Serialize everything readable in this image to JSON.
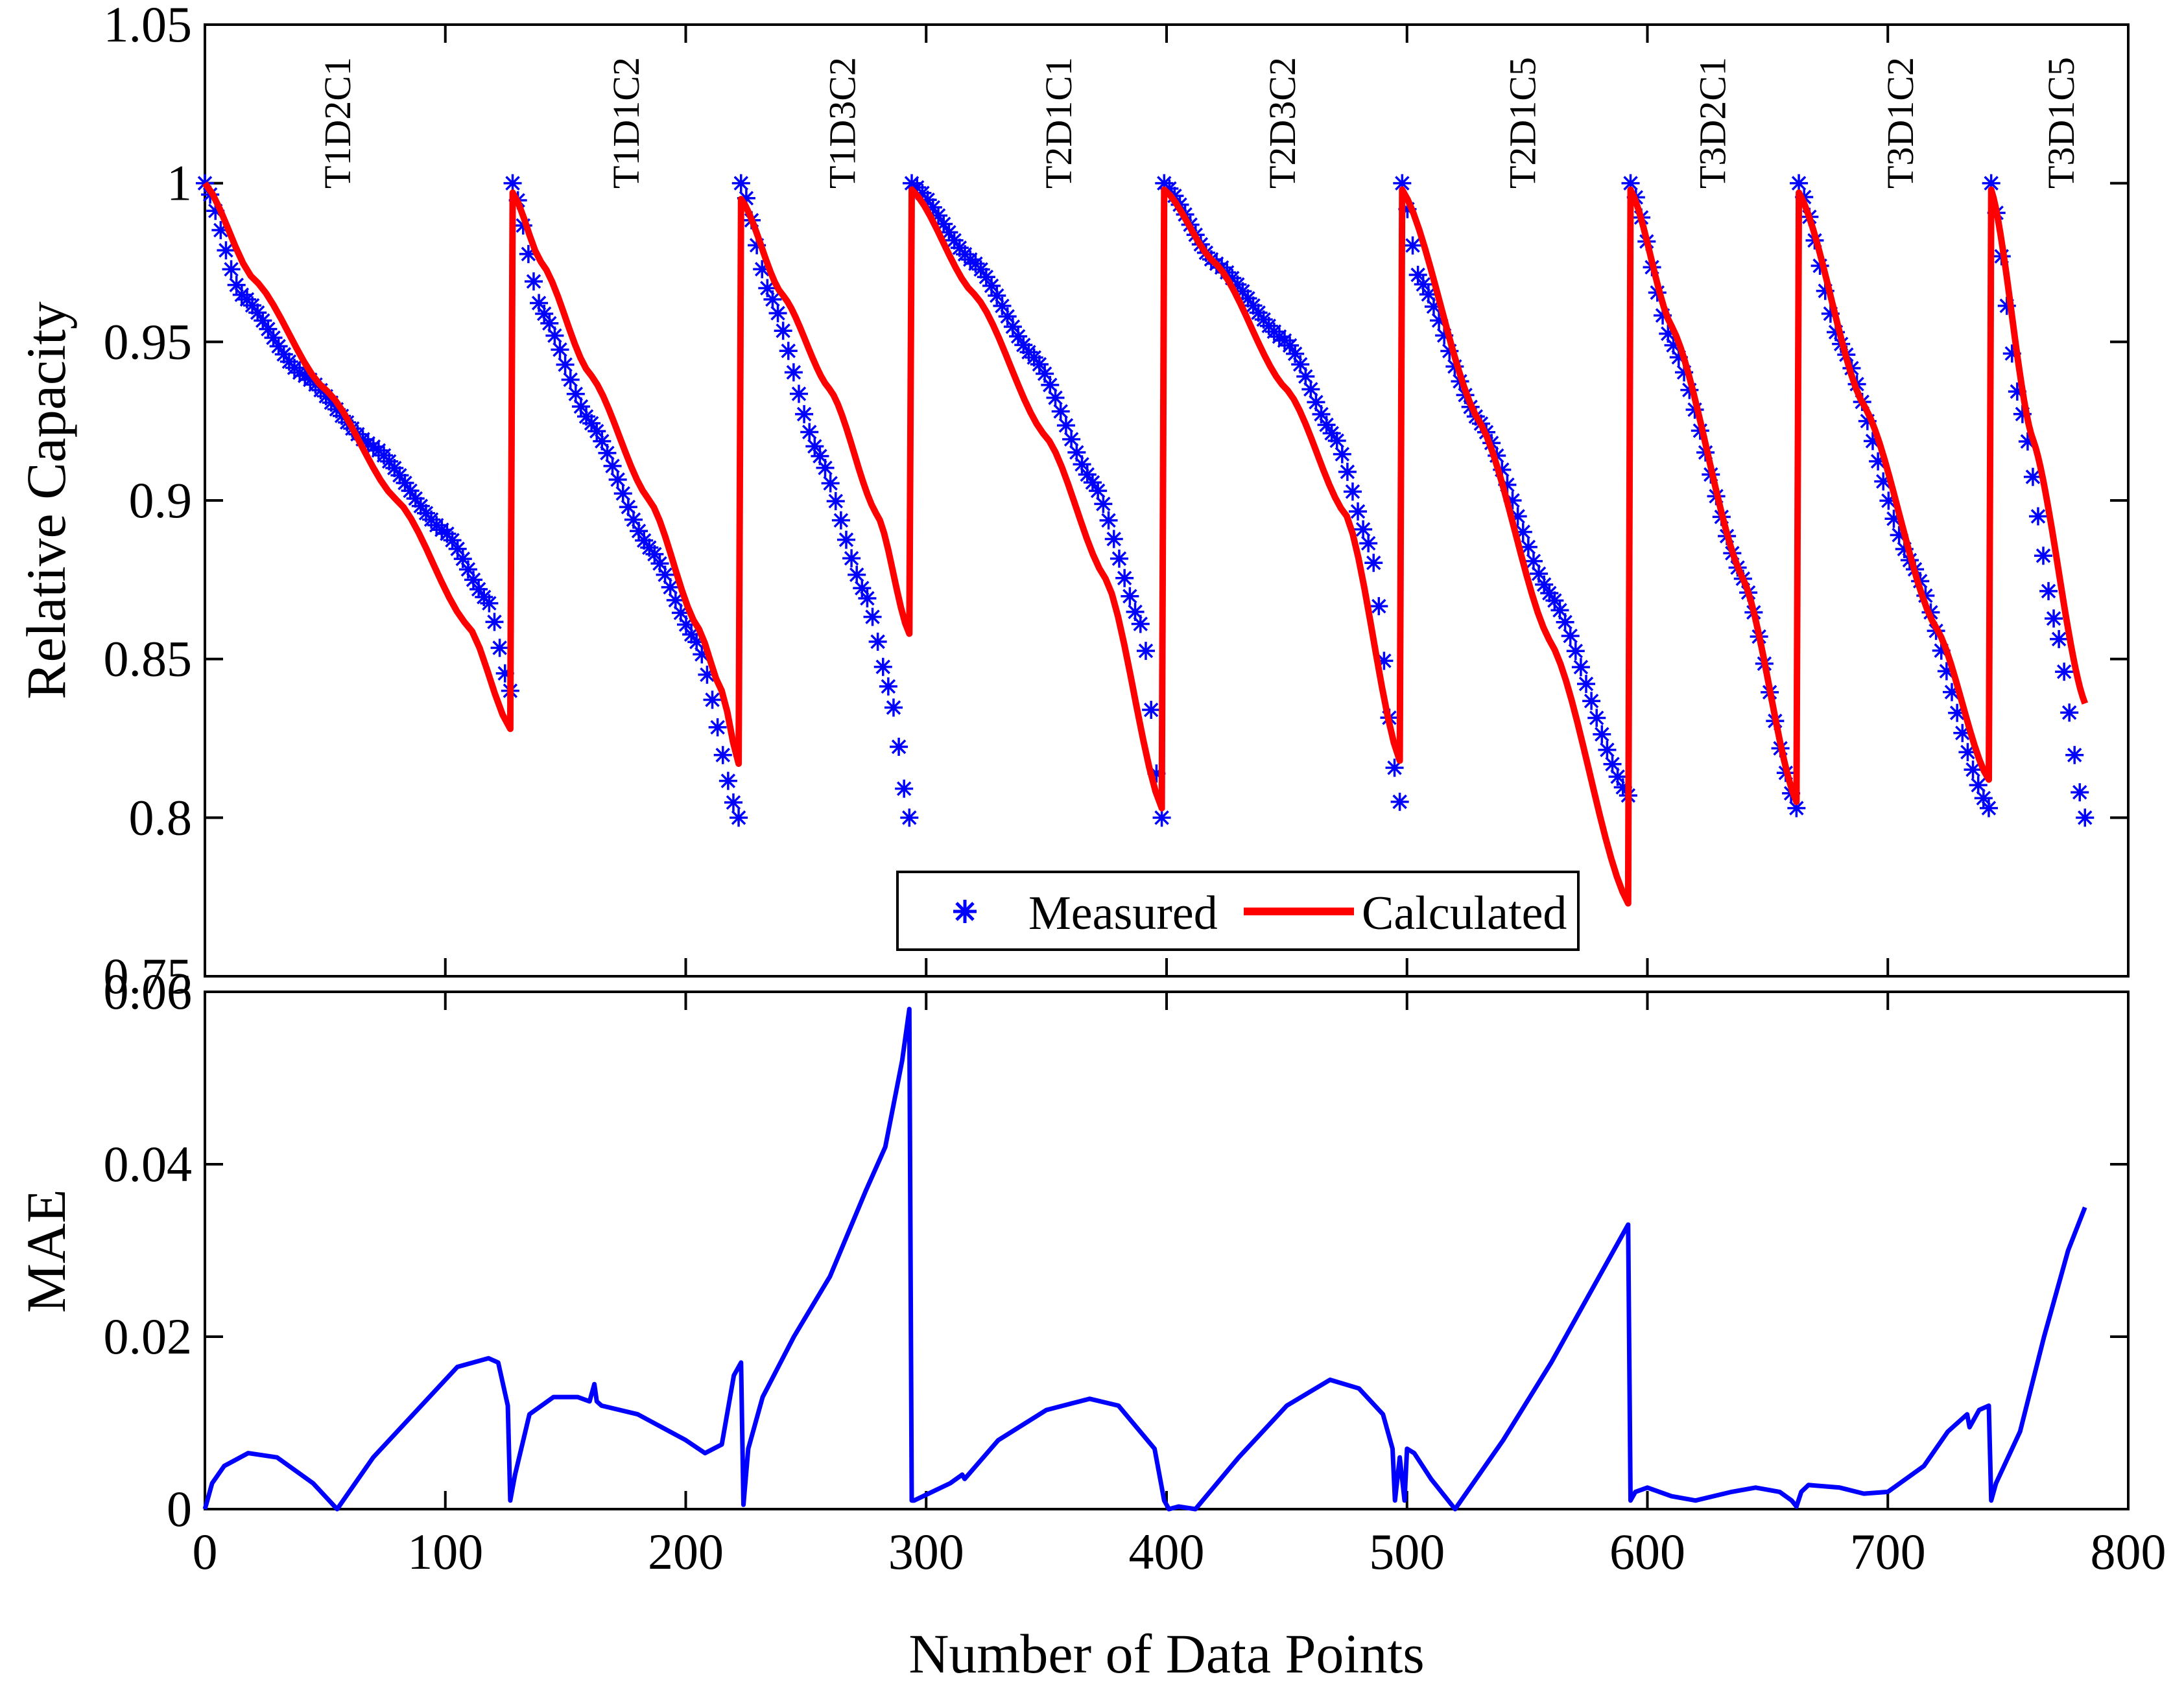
{
  "chart_data": [
    {
      "type": "line",
      "panel": "top",
      "title": "",
      "xlabel": "",
      "ylabel": "Relative Capacity",
      "xlim": [
        0,
        800
      ],
      "ylim": [
        0.75,
        1.05
      ],
      "xticks": [
        0,
        100,
        200,
        300,
        400,
        500,
        600,
        700,
        800
      ],
      "xtick_labels": [
        "",
        "",
        "",
        "",
        "",
        "",
        "",
        "",
        ""
      ],
      "yticks": [
        0.75,
        0.8,
        0.85,
        0.9,
        0.95,
        1,
        1.05
      ],
      "ytick_labels": [
        "0.75",
        "0.8",
        "0.85",
        "0.9",
        "0.95",
        "1",
        "1.05"
      ],
      "segment_labels": [
        "T1D2C1",
        "T1D1C2",
        "T1D3C2",
        "T2D1C1",
        "T2D3C2",
        "T2D1C5",
        "T3D2C1",
        "T3D1C2",
        "T3D1C5"
      ],
      "segment_label_x": [
        55,
        175,
        265,
        355,
        448,
        548,
        627,
        705,
        772
      ],
      "legend": {
        "location": "bottom-center",
        "entries": [
          "Measured",
          "Calculated"
        ]
      },
      "segments": [
        {
          "x0": 0,
          "x1": 127,
          "measured": [
            [
              0,
              1.0
            ],
            [
              15,
              0.965
            ],
            [
              40,
              0.94
            ],
            [
              70,
              0.917
            ],
            [
              100,
              0.89
            ],
            [
              118,
              0.868
            ],
            [
              127,
              0.84
            ]
          ],
          "calculated": [
            [
              0,
              1.0
            ],
            [
              20,
              0.97
            ],
            [
              50,
              0.935
            ],
            [
              80,
              0.9
            ],
            [
              110,
              0.86
            ],
            [
              127,
              0.828
            ]
          ]
        },
        {
          "x0": 128,
          "x1": 222,
          "measured": [
            [
              128,
              1.0
            ],
            [
              140,
              0.96
            ],
            [
              160,
              0.925
            ],
            [
              185,
              0.885
            ],
            [
              205,
              0.855
            ],
            [
              222,
              0.8
            ]
          ],
          "calculated": [
            [
              128,
              0.997
            ],
            [
              140,
              0.975
            ],
            [
              160,
              0.94
            ],
            [
              185,
              0.9
            ],
            [
              205,
              0.86
            ],
            [
              215,
              0.84
            ],
            [
              222,
              0.817
            ]
          ]
        },
        {
          "x0": 223,
          "x1": 293,
          "measured": [
            [
              223,
              1.0
            ],
            [
              235,
              0.965
            ],
            [
              255,
              0.915
            ],
            [
              275,
              0.87
            ],
            [
              285,
              0.84
            ],
            [
              293,
              0.8
            ]
          ],
          "calculated": [
            [
              223,
              0.995
            ],
            [
              240,
              0.965
            ],
            [
              260,
              0.935
            ],
            [
              280,
              0.895
            ],
            [
              293,
              0.858
            ]
          ]
        },
        {
          "x0": 294,
          "x1": 398,
          "measured": [
            [
              294,
              1.0
            ],
            [
              320,
              0.975
            ],
            [
              345,
              0.945
            ],
            [
              370,
              0.905
            ],
            [
              390,
              0.86
            ],
            [
              398,
              0.8
            ]
          ],
          "calculated": [
            [
              294,
              0.998
            ],
            [
              320,
              0.965
            ],
            [
              350,
              0.92
            ],
            [
              375,
              0.875
            ],
            [
              398,
              0.803
            ]
          ]
        },
        {
          "x0": 399,
          "x1": 497,
          "measured": [
            [
              399,
              1.0
            ],
            [
              420,
              0.975
            ],
            [
              450,
              0.95
            ],
            [
              470,
              0.92
            ],
            [
              485,
              0.885
            ],
            [
              497,
              0.805
            ]
          ],
          "calculated": [
            [
              399,
              0.998
            ],
            [
              420,
              0.975
            ],
            [
              450,
              0.935
            ],
            [
              475,
              0.895
            ],
            [
              497,
              0.818
            ]
          ]
        },
        {
          "x0": 498,
          "x1": 592,
          "measured": [
            [
              498,
              1.0
            ],
            [
              505,
              0.97
            ],
            [
              530,
              0.925
            ],
            [
              560,
              0.87
            ],
            [
              592,
              0.807
            ]
          ],
          "calculated": [
            [
              498,
              0.998
            ],
            [
              530,
              0.925
            ],
            [
              560,
              0.855
            ],
            [
              592,
              0.773
            ]
          ]
        },
        {
          "x0": 593,
          "x1": 662,
          "measured": [
            [
              593,
              1.0
            ],
            [
              610,
              0.95
            ],
            [
              640,
              0.875
            ],
            [
              662,
              0.803
            ]
          ],
          "calculated": [
            [
              593,
              0.998
            ],
            [
              610,
              0.955
            ],
            [
              640,
              0.875
            ],
            [
              662,
              0.805
            ]
          ]
        },
        {
          "x0": 663,
          "x1": 742,
          "measured": [
            [
              663,
              1.0
            ],
            [
              680,
              0.95
            ],
            [
              710,
              0.88
            ],
            [
              742,
              0.803
            ]
          ],
          "calculated": [
            [
              663,
              0.997
            ],
            [
              690,
              0.93
            ],
            [
              720,
              0.86
            ],
            [
              742,
              0.812
            ]
          ]
        },
        {
          "x0": 743,
          "x1": 782,
          "measured": [
            [
              743,
              1.0
            ],
            [
              755,
              0.93
            ],
            [
              770,
              0.86
            ],
            [
              782,
              0.8
            ]
          ],
          "calculated": [
            [
              743,
              0.998
            ],
            [
              760,
              0.92
            ],
            [
              782,
              0.836
            ]
          ]
        }
      ]
    },
    {
      "type": "line",
      "panel": "bottom",
      "title": "",
      "xlabel": "Number of Data Points",
      "ylabel": "MAE",
      "xlim": [
        0,
        800
      ],
      "ylim": [
        0,
        0.06
      ],
      "xticks": [
        0,
        100,
        200,
        300,
        400,
        500,
        600,
        700,
        800
      ],
      "xtick_labels": [
        "0",
        "100",
        "200",
        "300",
        "400",
        "500",
        "600",
        "700",
        "800"
      ],
      "yticks": [
        0,
        0.02,
        0.04,
        0.06
      ],
      "ytick_labels": [
        "0",
        "0.02",
        "0.04",
        "0.06"
      ],
      "series": [
        {
          "name": "MAE",
          "color": "#0000ff",
          "x": [
            0,
            3,
            8,
            18,
            30,
            45,
            55,
            70,
            90,
            105,
            118,
            122,
            126,
            127,
            129,
            135,
            145,
            155,
            160,
            162,
            163,
            165,
            180,
            200,
            208,
            215,
            220,
            223,
            224,
            226,
            232,
            245,
            260,
            275,
            283,
            290,
            293,
            294,
            295,
            310,
            315,
            316,
            330,
            350,
            368,
            380,
            395,
            399,
            401,
            405,
            412,
            430,
            450,
            468,
            480,
            490,
            494,
            495,
            497,
            499,
            500,
            503,
            510,
            520,
            540,
            560,
            580,
            592,
            593,
            595,
            600,
            610,
            620,
            635,
            645,
            655,
            660,
            662,
            664,
            667,
            680,
            690,
            700,
            715,
            725,
            733,
            734,
            738,
            742,
            743,
            745,
            755,
            765,
            775,
            782
          ],
          "y": [
            0.0,
            0.003,
            0.005,
            0.0065,
            0.006,
            0.003,
            0.0,
            0.006,
            0.012,
            0.0165,
            0.0175,
            0.017,
            0.012,
            0.001,
            0.004,
            0.011,
            0.013,
            0.013,
            0.0125,
            0.0145,
            0.0125,
            0.012,
            0.011,
            0.008,
            0.0065,
            0.0075,
            0.0155,
            0.017,
            0.0005,
            0.007,
            0.013,
            0.02,
            0.027,
            0.037,
            0.042,
            0.052,
            0.058,
            0.001,
            0.001,
            0.003,
            0.004,
            0.0035,
            0.008,
            0.0115,
            0.0128,
            0.012,
            0.007,
            0.001,
            0.0,
            0.0003,
            0.0,
            0.006,
            0.012,
            0.015,
            0.014,
            0.011,
            0.007,
            0.001,
            0.006,
            0.001,
            0.007,
            0.0065,
            0.0035,
            0.0,
            0.008,
            0.017,
            0.027,
            0.033,
            0.001,
            0.002,
            0.0025,
            0.0015,
            0.001,
            0.002,
            0.0025,
            0.002,
            0.001,
            0.0003,
            0.002,
            0.0028,
            0.0025,
            0.0018,
            0.002,
            0.005,
            0.009,
            0.011,
            0.0095,
            0.0115,
            0.012,
            0.001,
            0.003,
            0.009,
            0.02,
            0.03,
            0.035
          ]
        }
      ]
    }
  ],
  "style": {
    "measured_color": "#0000ff",
    "calculated_color": "#ff0000",
    "mae_color": "#0000ff"
  }
}
